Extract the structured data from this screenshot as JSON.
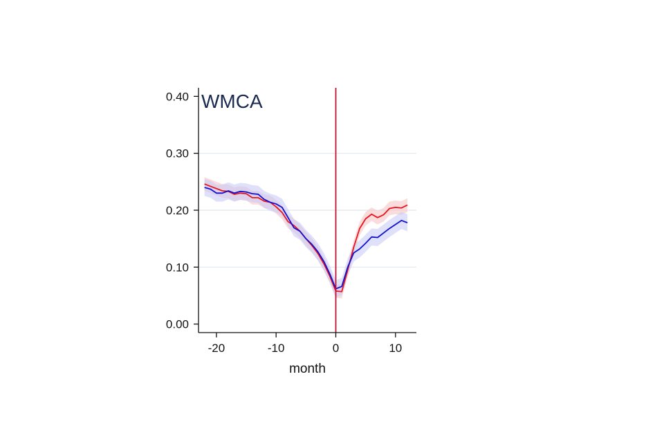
{
  "chart_data": {
    "type": "line",
    "title": "WMCA",
    "xlabel": "month",
    "ylabel": "",
    "xlim": [
      -23,
      13.5
    ],
    "ylim": [
      -0.015,
      0.415
    ],
    "x_ticks": [
      -20,
      -10,
      0,
      10
    ],
    "x_tick_labels": [
      "-20",
      "-10",
      "0",
      "10"
    ],
    "y_ticks": [
      0.0,
      0.1,
      0.2,
      0.3,
      0.4
    ],
    "y_tick_labels": [
      "0.00",
      "0.10",
      "0.20",
      "0.30",
      "0.40"
    ],
    "grid": true,
    "legend": "none",
    "reference_line": {
      "x": 0,
      "color": "#c8102e"
    },
    "x": [
      -22,
      -21,
      -20,
      -19,
      -18,
      -17,
      -16,
      -15,
      -14,
      -13,
      -12,
      -11,
      -10,
      -9,
      -8,
      -7,
      -6,
      -5,
      -4,
      -3,
      -2,
      -1,
      0,
      1,
      2,
      3,
      4,
      5,
      6,
      7,
      8,
      9,
      10,
      11,
      12
    ],
    "series": [
      {
        "color": "#e8141c",
        "band_color": "#f7c4c7",
        "values": [
          0.246,
          0.242,
          0.238,
          0.234,
          0.233,
          0.228,
          0.23,
          0.229,
          0.222,
          0.222,
          0.216,
          0.214,
          0.206,
          0.196,
          0.18,
          0.173,
          0.163,
          0.15,
          0.138,
          0.124,
          0.106,
          0.084,
          0.058,
          0.057,
          0.095,
          0.135,
          0.168,
          0.185,
          0.193,
          0.187,
          0.192,
          0.203,
          0.205,
          0.204,
          0.209
        ],
        "band_halfwidth": 0.012
      },
      {
        "color": "#1010d0",
        "band_color": "#c9cbf5",
        "values": [
          0.24,
          0.237,
          0.23,
          0.23,
          0.234,
          0.23,
          0.233,
          0.232,
          0.229,
          0.228,
          0.219,
          0.214,
          0.211,
          0.205,
          0.187,
          0.169,
          0.163,
          0.15,
          0.14,
          0.127,
          0.11,
          0.088,
          0.062,
          0.066,
          0.1,
          0.125,
          0.132,
          0.142,
          0.153,
          0.152,
          0.16,
          0.168,
          0.175,
          0.182,
          0.178
        ],
        "band_halfwidth": 0.015
      }
    ]
  }
}
